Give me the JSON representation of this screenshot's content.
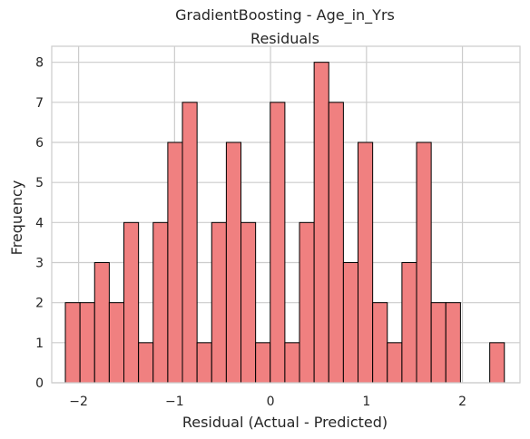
{
  "chart_data": {
    "type": "bar",
    "title": "GradientBoosting - Age_in_Yrs",
    "subtitle": "Residuals",
    "xlabel": "Residual (Actual - Predicted)",
    "ylabel": "Frequency",
    "xlim": [
      -2.28,
      2.6
    ],
    "ylim": [
      0,
      8.4
    ],
    "x_ticks": [
      -2,
      -1,
      0,
      1,
      2
    ],
    "x_tick_labels": [
      "−2",
      "−1",
      "0",
      "1",
      "2"
    ],
    "y_ticks": [
      0,
      1,
      2,
      3,
      4,
      5,
      6,
      7,
      8
    ],
    "y_tick_labels": [
      "0",
      "1",
      "2",
      "3",
      "4",
      "5",
      "6",
      "7",
      "8"
    ],
    "grid": true,
    "bin_start": -2.138,
    "bin_width": 0.1525,
    "values": [
      2,
      2,
      3,
      2,
      4,
      1,
      4,
      6,
      7,
      1,
      4,
      6,
      4,
      1,
      7,
      1,
      4,
      8,
      7,
      3,
      6,
      2,
      1,
      3,
      6,
      2,
      2,
      0,
      0,
      1
    ],
    "colors": {
      "bar_fill": "#f08080",
      "bar_edge": "#000000",
      "grid": "#cccccc",
      "spine": "#cccccc"
    }
  }
}
